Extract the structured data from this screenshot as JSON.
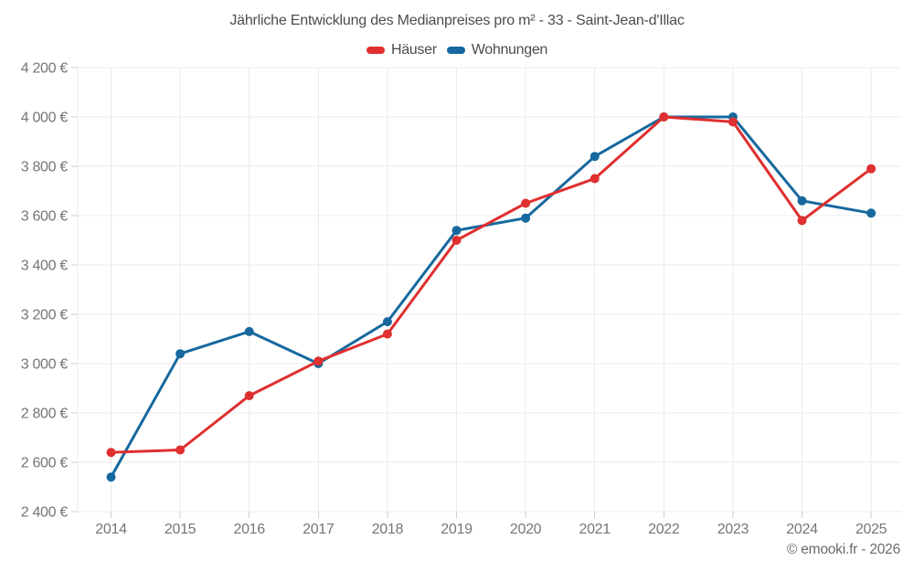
{
  "footer": {
    "attribution": "© emooki.fr - 2026"
  },
  "chart_data": {
    "type": "line",
    "title": "Jährliche Entwicklung des Medianpreises pro m² - 33 - Saint-Jean-d'Illac",
    "categories": [
      "2014",
      "2015",
      "2016",
      "2017",
      "2018",
      "2019",
      "2020",
      "2021",
      "2022",
      "2023",
      "2024",
      "2025"
    ],
    "series": [
      {
        "name": "Häuser",
        "color": "#df2f2f",
        "values": [
          2640,
          2650,
          2870,
          3010,
          3120,
          3500,
          3650,
          3750,
          4000,
          3980,
          3580,
          3790
        ]
      },
      {
        "name": "Wohnungen",
        "color": "#16689e",
        "values": [
          2540,
          3040,
          3130,
          3000,
          3170,
          3540,
          3590,
          3840,
          4000,
          4000,
          3660,
          3610
        ]
      }
    ],
    "xlabel": "",
    "ylabel": "",
    "ylim": [
      2400,
      4200
    ],
    "yticks": [
      2400,
      2600,
      2800,
      3000,
      3200,
      3400,
      3600,
      3800,
      4000,
      4200
    ],
    "ytick_labels": [
      "2 400 €",
      "2 600 €",
      "2 800 €",
      "3 000 €",
      "3 200 €",
      "3 400 €",
      "3 600 €",
      "3 800 €",
      "4 000 €",
      "4 200 €"
    ],
    "currency_unit": "€",
    "grid": true,
    "legend_position": "top",
    "marker": "circle"
  }
}
